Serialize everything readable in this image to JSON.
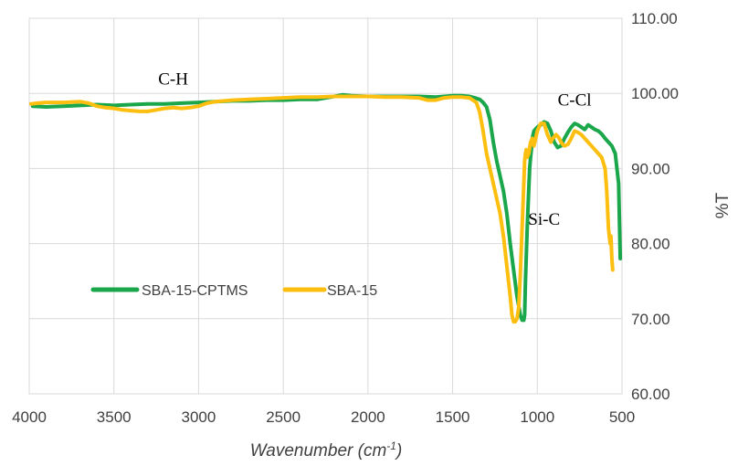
{
  "chart_data": {
    "type": "line",
    "title": "",
    "xlabel": "Wavenumber (cm",
    "xlabel_sup": "-1",
    "xlabel_close": ")",
    "ylabel": "%T",
    "xlim": [
      4000,
      500
    ],
    "ylim": [
      60,
      110
    ],
    "x_reversed": true,
    "y_axis_side": "right",
    "grid": true,
    "x_ticks": [
      4000,
      3500,
      3000,
      2500,
      2000,
      1500,
      1000,
      500
    ],
    "x_tick_labels": [
      "4000",
      "3500",
      "3000",
      "2500",
      "2000",
      "1500",
      "1000",
      "500"
    ],
    "y_ticks": [
      60,
      70,
      80,
      90,
      100,
      110
    ],
    "y_tick_labels": [
      "60.00",
      "70.00",
      "80.00",
      "90.00",
      "100.00",
      "110.00"
    ],
    "legend": {
      "position": "center-left",
      "entries": [
        "SBA-15-CPTMS",
        "SBA-15"
      ]
    },
    "annotations": [
      {
        "text": "C-H",
        "x": 3150,
        "y": 101.2
      },
      {
        "text": "C-Cl",
        "x": 780,
        "y": 98.4
      },
      {
        "text": "Si-C",
        "x": 960,
        "y": 82.5
      }
    ],
    "series": [
      {
        "name": "SBA-15-CPTMS",
        "color": "#1aa64a",
        "x": [
          3980,
          3900,
          3800,
          3700,
          3600,
          3500,
          3400,
          3300,
          3200,
          3100,
          3000,
          2900,
          2800,
          2700,
          2600,
          2500,
          2400,
          2300,
          2200,
          2150,
          2100,
          2000,
          1900,
          1800,
          1700,
          1600,
          1500,
          1450,
          1400,
          1370,
          1340,
          1320,
          1300,
          1280,
          1260,
          1240,
          1220,
          1200,
          1180,
          1160,
          1140,
          1120,
          1100,
          1090,
          1080,
          1075,
          1070,
          1060,
          1050,
          1045,
          1040,
          1035,
          1030,
          1020,
          1000,
          980,
          960,
          940,
          920,
          900,
          880,
          860,
          840,
          820,
          800,
          780,
          760,
          740,
          720,
          700,
          680,
          660,
          640,
          620,
          600,
          580,
          560,
          540,
          520,
          510
        ],
        "values": [
          98.3,
          98.2,
          98.3,
          98.4,
          98.5,
          98.4,
          98.5,
          98.6,
          98.6,
          98.7,
          98.8,
          98.9,
          99.0,
          99.0,
          99.1,
          99.1,
          99.2,
          99.2,
          99.6,
          99.8,
          99.7,
          99.6,
          99.6,
          99.6,
          99.6,
          99.5,
          99.7,
          99.7,
          99.6,
          99.4,
          99.2,
          98.8,
          98.2,
          96.5,
          93.5,
          91.0,
          89.0,
          87.0,
          84.0,
          80.0,
          76.5,
          73.0,
          70.5,
          69.8,
          69.8,
          70.5,
          75.0,
          82.0,
          87.5,
          90.0,
          91.5,
          92.5,
          94.0,
          95.0,
          95.5,
          95.8,
          96.2,
          96.0,
          95.0,
          93.5,
          92.8,
          93.0,
          94.0,
          94.8,
          95.5,
          96.0,
          95.8,
          95.5,
          95.2,
          95.8,
          95.5,
          95.2,
          95.0,
          94.6,
          94.0,
          93.5,
          93.0,
          92.0,
          88.0,
          78.0
        ]
      },
      {
        "name": "SBA-15",
        "color": "#fdbf0f",
        "x": [
          3990,
          3950,
          3900,
          3800,
          3700,
          3650,
          3600,
          3550,
          3500,
          3450,
          3400,
          3350,
          3300,
          3250,
          3200,
          3150,
          3100,
          3050,
          3000,
          2950,
          2900,
          2800,
          2700,
          2600,
          2500,
          2400,
          2300,
          2200,
          2100,
          2000,
          1900,
          1800,
          1700,
          1650,
          1600,
          1550,
          1500,
          1450,
          1400,
          1380,
          1360,
          1340,
          1320,
          1300,
          1280,
          1260,
          1240,
          1220,
          1200,
          1180,
          1160,
          1150,
          1140,
          1130,
          1120,
          1110,
          1100,
          1090,
          1080,
          1075,
          1070,
          1065,
          1060,
          1050,
          1040,
          1030,
          1020,
          1000,
          980,
          960,
          940,
          920,
          910,
          900,
          890,
          880,
          870,
          860,
          850,
          840,
          820,
          800,
          780,
          760,
          740,
          720,
          700,
          680,
          660,
          640,
          620,
          600,
          590,
          580,
          570,
          565,
          560,
          555
        ],
        "values": [
          98.6,
          98.7,
          98.8,
          98.8,
          98.9,
          98.7,
          98.3,
          98.1,
          98.0,
          97.8,
          97.7,
          97.6,
          97.6,
          97.8,
          98.0,
          98.1,
          98.0,
          98.1,
          98.3,
          98.7,
          98.9,
          99.1,
          99.2,
          99.3,
          99.4,
          99.5,
          99.5,
          99.6,
          99.6,
          99.6,
          99.5,
          99.5,
          99.4,
          99.1,
          99.1,
          99.4,
          99.5,
          99.5,
          99.4,
          99.1,
          98.8,
          97.5,
          95.0,
          92.0,
          90.0,
          88.0,
          86.0,
          84.0,
          81.0,
          77.0,
          73.0,
          70.5,
          69.6,
          69.6,
          70.0,
          71.5,
          76.0,
          82.0,
          88.0,
          91.0,
          92.0,
          92.5,
          91.5,
          92.0,
          93.5,
          94.0,
          93.0,
          95.0,
          96.0,
          96.0,
          94.5,
          93.5,
          94.0,
          94.2,
          94.5,
          94.3,
          94.0,
          93.5,
          93.2,
          93.0,
          93.2,
          94.0,
          95.0,
          94.8,
          94.5,
          94.0,
          93.5,
          93.0,
          92.5,
          92.0,
          91.5,
          90.0,
          87.0,
          82.0,
          80.0,
          81.0,
          78.0,
          76.5
        ]
      }
    ]
  }
}
